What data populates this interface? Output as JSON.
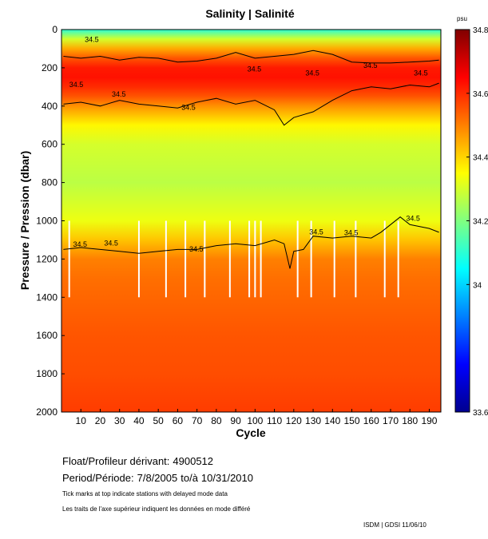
{
  "chart_data": {
    "type": "heatmap",
    "title": "Salinity | Salinité",
    "xlabel": "Cycle",
    "ylabel": "Pressure / Pression (dbar)",
    "xlim": [
      0,
      196
    ],
    "ylim": [
      2000,
      0
    ],
    "x_ticks": [
      10,
      20,
      30,
      40,
      50,
      60,
      70,
      80,
      90,
      100,
      110,
      120,
      130,
      140,
      150,
      160,
      170,
      180,
      190
    ],
    "y_ticks": [
      0,
      200,
      400,
      600,
      800,
      1000,
      1200,
      1400,
      1600,
      1800,
      2000
    ],
    "colorbar": {
      "unit": "psu",
      "range": [
        33.6,
        34.8
      ],
      "tick_labels": [
        "33.6",
        "34",
        "34.2",
        "34.4",
        "34.6",
        "34.8"
      ]
    },
    "colormap": [
      "#00008f",
      "#0000ff",
      "#0080ff",
      "#00ffff",
      "#80ff80",
      "#ffff00",
      "#ff8000",
      "#ff0000",
      "#800000"
    ],
    "depth_profile": {
      "pressure": [
        0,
        50,
        100,
        150,
        200,
        250,
        300,
        350,
        400,
        500,
        600,
        800,
        1000,
        1100,
        1200,
        1300,
        1400,
        1600,
        1800,
        2000
      ],
      "salinity": [
        34.1,
        34.3,
        34.45,
        34.55,
        34.62,
        34.63,
        34.6,
        34.55,
        34.48,
        34.36,
        34.3,
        34.27,
        34.33,
        34.42,
        34.5,
        34.52,
        34.53,
        34.55,
        34.56,
        34.58
      ]
    },
    "contour_level": "34.5",
    "contour_34_5_upper": {
      "cycle": [
        1,
        10,
        20,
        30,
        40,
        50,
        60,
        70,
        80,
        90,
        100,
        110,
        120,
        130,
        140,
        150,
        160,
        170,
        180,
        190,
        195
      ],
      "pressure": [
        140,
        150,
        140,
        160,
        145,
        150,
        170,
        165,
        150,
        120,
        150,
        140,
        130,
        110,
        130,
        170,
        175,
        175,
        170,
        165,
        160
      ]
    },
    "contour_34_5_lower": {
      "cycle": [
        1,
        10,
        20,
        30,
        40,
        50,
        60,
        70,
        80,
        90,
        100,
        110,
        115,
        120,
        130,
        140,
        150,
        160,
        170,
        180,
        190,
        195
      ],
      "pressure": [
        390,
        380,
        400,
        370,
        390,
        400,
        410,
        380,
        360,
        390,
        370,
        420,
        500,
        460,
        430,
        370,
        320,
        300,
        310,
        290,
        300,
        280
      ]
    },
    "contour_34_5_deep": {
      "cycle": [
        1,
        10,
        20,
        30,
        40,
        50,
        60,
        70,
        80,
        90,
        100,
        110,
        115,
        118,
        120,
        125,
        130,
        140,
        150,
        160,
        165,
        170,
        175,
        180,
        190,
        195
      ],
      "pressure": [
        1150,
        1140,
        1150,
        1160,
        1170,
        1160,
        1150,
        1150,
        1130,
        1120,
        1130,
        1100,
        1120,
        1250,
        1160,
        1150,
        1080,
        1090,
        1080,
        1090,
        1060,
        1020,
        980,
        1020,
        1040,
        1060
      ]
    },
    "contour_labels": [
      {
        "text": "34.5",
        "cycle": 12,
        "pressure": 65
      },
      {
        "text": "34.5",
        "cycle": 4,
        "pressure": 300
      },
      {
        "text": "34.5",
        "cycle": 26,
        "pressure": 350
      },
      {
        "text": "34.5",
        "cycle": 62,
        "pressure": 420
      },
      {
        "text": "34.5",
        "cycle": 96,
        "pressure": 220
      },
      {
        "text": "34.5",
        "cycle": 126,
        "pressure": 240
      },
      {
        "text": "34.5",
        "cycle": 156,
        "pressure": 200
      },
      {
        "text": "34.5",
        "cycle": 182,
        "pressure": 240
      },
      {
        "text": "34.5",
        "cycle": 6,
        "pressure": 1135
      },
      {
        "text": "34.5",
        "cycle": 22,
        "pressure": 1130
      },
      {
        "text": "34.5",
        "cycle": 66,
        "pressure": 1160
      },
      {
        "text": "34.5",
        "cycle": 128,
        "pressure": 1070
      },
      {
        "text": "34.5",
        "cycle": 146,
        "pressure": 1075
      },
      {
        "text": "34.5",
        "cycle": 178,
        "pressure": 1000
      }
    ],
    "missing_profile_cycles": [
      4,
      40,
      54,
      64,
      74,
      87,
      97,
      100,
      103,
      122,
      129,
      141,
      152,
      167,
      174
    ]
  },
  "float": {
    "label": "Float/Profileur dérivant:",
    "id": "4900512"
  },
  "period": {
    "label": "Period/Période:",
    "start": "7/8/2005",
    "to": "to/à",
    "end": "10/31/2010"
  },
  "notes": {
    "en": "Tick marks at top indicate stations with delayed mode data",
    "fr": "Les traits de l'axe supérieur indiquent les données en mode différé"
  },
  "credit": "ISDM | GDSI  11/06/10"
}
